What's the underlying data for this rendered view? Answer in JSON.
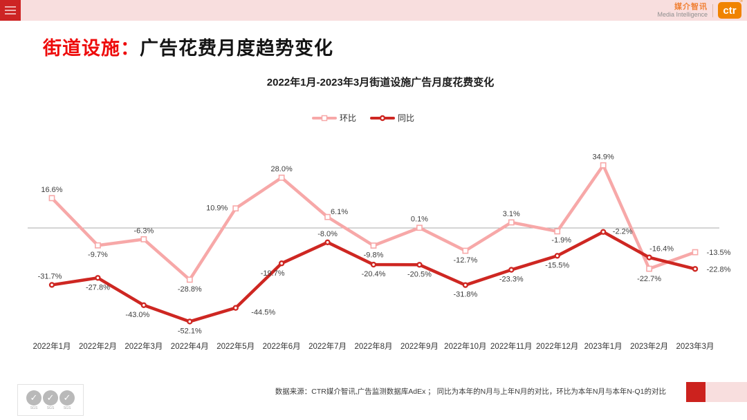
{
  "topbar": {
    "brand_cn": "媒介智讯",
    "brand_en": "Media Intelligence",
    "logo_text": "ctr",
    "logo_reg": "®"
  },
  "header": {
    "title_prefix": "街道设施：",
    "title_main": "广告花费月度趋势变化"
  },
  "chart_data": {
    "type": "line",
    "title": "2022年1月-2023年3月街道设施广告月度花费变化",
    "categories": [
      "2022年1月",
      "2022年2月",
      "2022年3月",
      "2022年4月",
      "2022年5月",
      "2022年6月",
      "2022年7月",
      "2022年8月",
      "2022年9月",
      "2022年10月",
      "2022年11月",
      "2022年12月",
      "2023年1月",
      "2023年2月",
      "2023年3月"
    ],
    "series": [
      {
        "name": "环比",
        "marker": "square",
        "color": "#F7A8A8",
        "values": [
          16.6,
          -9.7,
          -6.3,
          -28.8,
          10.9,
          28.0,
          6.1,
          -9.8,
          0.1,
          -12.7,
          3.1,
          -1.9,
          34.9,
          -22.7,
          -13.5
        ]
      },
      {
        "name": "同比",
        "marker": "circle",
        "color": "#CE2722",
        "values": [
          -31.7,
          -27.8,
          -43.0,
          -52.1,
          -44.5,
          -19.7,
          -8.0,
          -20.4,
          -20.5,
          -31.8,
          -23.3,
          -15.5,
          -2.2,
          -16.4,
          -22.8
        ]
      }
    ],
    "unit": "%",
    "ylim": [
      -60,
      40
    ],
    "zero_line": true,
    "grid": false,
    "legend_position": "top",
    "label_color": "#3D3D3D",
    "axis_line_color": "#A8A8A8",
    "tick_color": "#333333"
  },
  "footer": {
    "source_text": "数据来源：CTR媒介智讯,广告监测数据库AdEx ； 同比为本年的N月与上年N月的对比，环比为本年N月与本年N-Q1的对比",
    "sgs_label": "SGS",
    "sgs_check": "✓"
  }
}
